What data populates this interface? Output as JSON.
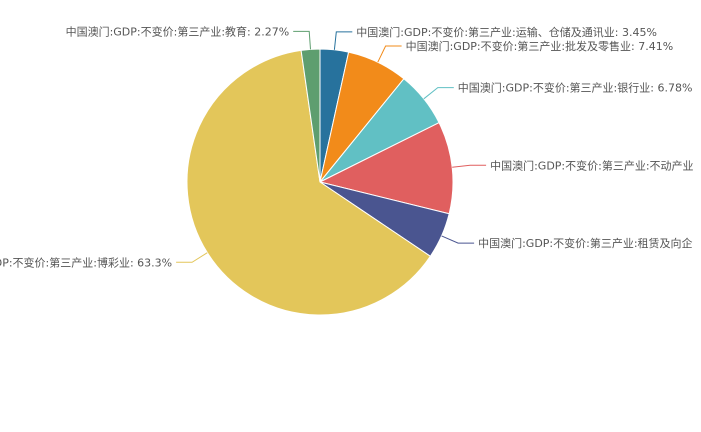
{
  "chart_data": {
    "type": "pie",
    "slices": [
      {
        "label": "中国澳门:GDP:不变价:第三产业:运输、仓储及通讯业",
        "value": 3.45,
        "display": "3.45%",
        "color": "#27729d"
      },
      {
        "label": "中国澳门:GDP:不变价:第三产业:批发及零售业",
        "value": 7.41,
        "display": "7.41%",
        "color": "#f28b1a"
      },
      {
        "label": "中国澳门:GDP:不变价:第三产业:银行业",
        "value": 6.78,
        "display": "6.78%",
        "color": "#61c0c4"
      },
      {
        "label": "中国澳门:GDP:不变价:第三产业:不动产业",
        "value": 11.2,
        "display": "",
        "color": "#e05f5f"
      },
      {
        "label": "中国澳门:GDP:不变价:第三产业:租赁及向企",
        "value": 5.59,
        "display": "",
        "color": "#4a5590"
      },
      {
        "label": "中国澳门:GDP:不变价:第三产业:博彩业",
        "value": 63.3,
        "display": "63.3%",
        "color": "#e3c65a"
      },
      {
        "label": "中国澳门:GDP:不变价:第三产业:教育",
        "value": 2.27,
        "display": "2.27%",
        "color": "#5e9e6f"
      }
    ]
  }
}
